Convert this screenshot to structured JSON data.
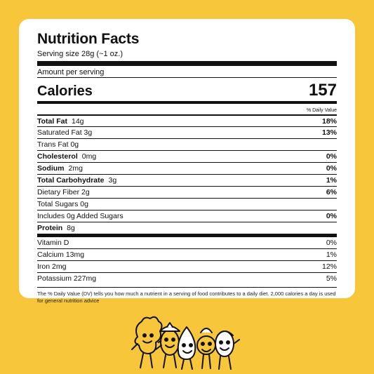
{
  "label": {
    "title": "Nutrition Facts",
    "serving": "Serving size 28g (~1 oz.)",
    "amount_per_serving": "Amount per serving",
    "calories_label": "Calories",
    "calories_value": "157",
    "dv_header": "% Daily Value",
    "macros": [
      {
        "name": "Total Fat",
        "amount": "14g",
        "dv": "18%",
        "bold": true
      },
      {
        "name": "Saturated Fat 3g",
        "amount": "",
        "dv": "13%",
        "bold": false
      },
      {
        "name": "Trans Fat 0g",
        "amount": "",
        "dv": "",
        "bold": false
      },
      {
        "name": "Cholesterol",
        "amount": "0mg",
        "dv": "0%",
        "bold": true
      },
      {
        "name": "Sodium",
        "amount": "2mg",
        "dv": "0%",
        "bold": true
      },
      {
        "name": "Total Carbohydrate",
        "amount": "3g",
        "dv": "1%",
        "bold": true
      },
      {
        "name": "Dietary Fiber 2g",
        "amount": "",
        "dv": "6%",
        "bold": false
      },
      {
        "name": "Total Sugars 0g",
        "amount": "",
        "dv": "",
        "bold": false
      },
      {
        "name": "Includes 0g Added Sugars",
        "amount": "",
        "dv": "0%",
        "bold": false
      },
      {
        "name": "Protein",
        "amount": "8g",
        "dv": "",
        "bold": true
      }
    ],
    "micros": [
      {
        "name": "Vitamin D",
        "dv": "0%"
      },
      {
        "name": "Calcium 13mg",
        "dv": "1%"
      },
      {
        "name": "Iron 2mg",
        "dv": "12%"
      },
      {
        "name": "Potassium 227mg",
        "dv": "5%"
      }
    ],
    "footnote": "The % Daily Value (DV) tells you how much a nutrient in a serving of food contributes to a daily diet. 2,000 calories a day is used for general nutrition advice"
  },
  "colors": {
    "background": "#f8c63a",
    "card": "#ffffff",
    "ink": "#111111"
  },
  "mascot": {
    "icon": "nut-characters-illustration"
  }
}
